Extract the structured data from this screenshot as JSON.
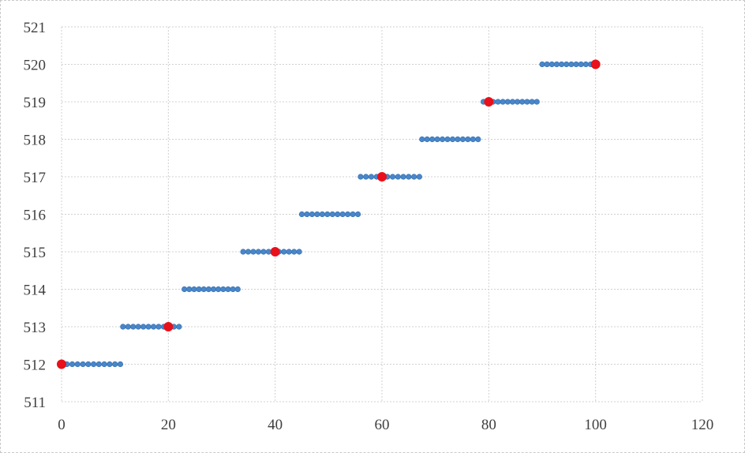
{
  "chart_data": {
    "type": "scatter",
    "title": "",
    "xlabel": "",
    "ylabel": "",
    "xlim": [
      0,
      120
    ],
    "ylim": [
      511,
      521
    ],
    "x_ticks": [
      0,
      20,
      40,
      60,
      80,
      100,
      120
    ],
    "y_ticks": [
      511,
      512,
      513,
      514,
      515,
      516,
      517,
      518,
      519,
      520,
      521
    ],
    "grid": true,
    "legend": "none",
    "colors": {
      "small_points": "#4a86c8",
      "large_points": "#e8101a",
      "grid": "#d0d0d0",
      "text": "#404040"
    },
    "series": [
      {
        "marker": "small",
        "segments": [
          {
            "y": 512,
            "x_start": 0,
            "x_end": 11,
            "count": 12
          },
          {
            "y": 513,
            "x_start": 11.5,
            "x_end": 22,
            "count": 12
          },
          {
            "y": 514,
            "x_start": 23,
            "x_end": 33,
            "count": 12
          },
          {
            "y": 515,
            "x_start": 34,
            "x_end": 44.5,
            "count": 12
          },
          {
            "y": 516,
            "x_start": 45,
            "x_end": 55.5,
            "count": 12
          },
          {
            "y": 517,
            "x_start": 56,
            "x_end": 67,
            "count": 12
          },
          {
            "y": 518,
            "x_start": 67.5,
            "x_end": 78,
            "count": 12
          },
          {
            "y": 519,
            "x_start": 79,
            "x_end": 89,
            "count": 12
          },
          {
            "y": 520,
            "x_start": 90,
            "x_end": 100,
            "count": 12
          }
        ]
      },
      {
        "marker": "large",
        "points": [
          {
            "x": 0,
            "y": 512
          },
          {
            "x": 20,
            "y": 513
          },
          {
            "x": 40,
            "y": 515
          },
          {
            "x": 60,
            "y": 517
          },
          {
            "x": 80,
            "y": 519
          },
          {
            "x": 100,
            "y": 520
          }
        ]
      }
    ]
  }
}
